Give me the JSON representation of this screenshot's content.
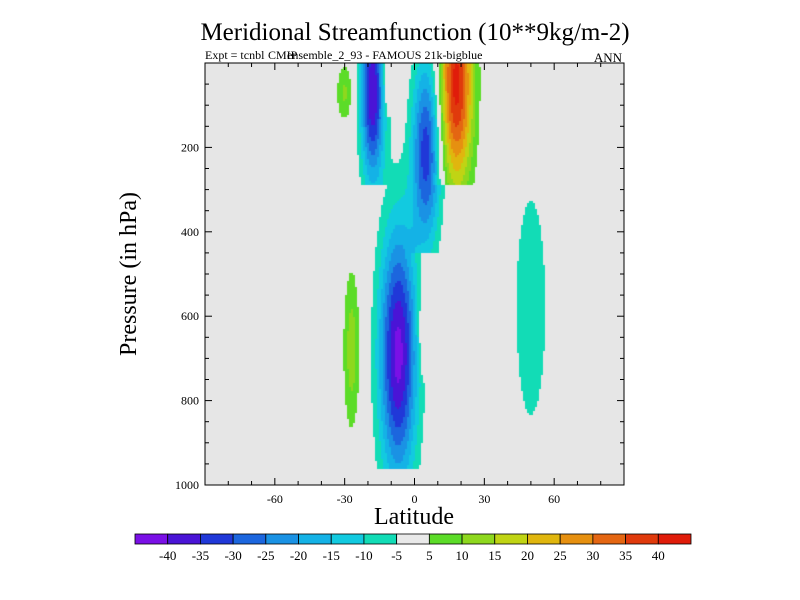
{
  "chart_data": {
    "type": "contour",
    "title": "Meridional Streamfunction (10**9kg/m-2)",
    "subtitle_lines": [
      "Expt = tcnbl",
      "CMIP",
      "ensemble_2_93 - FAMOUS 21k-bigblue"
    ],
    "season_label": "ANN",
    "xlabel": "Latitude",
    "ylabel": "Pressure (in hPa)",
    "xlim": [
      -90,
      90
    ],
    "ylim": [
      0,
      1000
    ],
    "y_inverted": true,
    "x_ticks": [
      -60,
      -30,
      0,
      30,
      60
    ],
    "y_ticks": [
      200,
      400,
      600,
      800,
      1000
    ],
    "x_minor_step": 10,
    "y_minor_step": 50,
    "background_color": "#e6e6e6",
    "contour_levels": [
      -40,
      -35,
      -30,
      -25,
      -20,
      -15,
      -10,
      -5,
      5,
      10,
      15,
      20,
      25,
      30,
      35,
      40
    ],
    "colorbar": [
      {
        "color": "#7a10e6",
        "label": "-40"
      },
      {
        "color": "#4a14d6",
        "label": "-35"
      },
      {
        "color": "#2038d8",
        "label": "-30"
      },
      {
        "color": "#1c66de",
        "label": "-25"
      },
      {
        "color": "#1a92e4",
        "label": "-20"
      },
      {
        "color": "#14b2e6",
        "label": "-15"
      },
      {
        "color": "#12cae0",
        "label": "-10"
      },
      {
        "color": "#12dcb6",
        "label": "-5"
      },
      {
        "color": "#e9e9e9",
        "label": "5"
      },
      {
        "color": "#5cdc28",
        "label": "10"
      },
      {
        "color": "#8ed81e",
        "label": "15"
      },
      {
        "color": "#c0d414",
        "label": "20"
      },
      {
        "color": "#e0b60e",
        "label": "25"
      },
      {
        "color": "#e69010",
        "label": "30"
      },
      {
        "color": "#e46612",
        "label": "35"
      },
      {
        "color": "#e03a0c",
        "label": "40"
      },
      {
        "color": "#e01c0a",
        "label": ""
      }
    ],
    "cells": [
      {
        "name": "nh-deep-cell-strong",
        "center": [
          -7,
          690
        ],
        "half_width": [
          8,
          300
        ],
        "bottom_p": 960,
        "sign": -1,
        "peak": 42
      },
      {
        "name": "nh-upper-cell",
        "center": [
          -18,
          70
        ],
        "half_width": [
          5,
          210
        ],
        "bottom_p": 290,
        "sign": -1,
        "peak": 40
      },
      {
        "name": "sh-tropical-cell",
        "center": [
          5,
          210
        ],
        "half_width": [
          6,
          220
        ],
        "bottom_p": 450,
        "sign": -1,
        "peak": 33
      },
      {
        "name": "subtropical-positive-jet",
        "center": [
          18,
          50
        ],
        "half_width": [
          7,
          240
        ],
        "bottom_p": 290,
        "sign": 1,
        "peak": 42
      },
      {
        "name": "nh-positive-lobe-upper",
        "center": [
          -30,
          70
        ],
        "half_width": [
          3.5,
          70
        ],
        "bottom_p": 130,
        "sign": 1,
        "peak": 11
      },
      {
        "name": "nh-positive-lobe-lower",
        "center": [
          -27,
          680
        ],
        "half_width": [
          3.5,
          190
        ],
        "bottom_p": 920,
        "sign": 1,
        "peak": 13
      },
      {
        "name": "tropical-positive-lobe-upper",
        "center": [
          -11,
          50
        ],
        "half_width": [
          3,
          90
        ],
        "bottom_p": 130,
        "sign": 1,
        "peak": 9
      },
      {
        "name": "tropical-positive-lobe-lower",
        "center": [
          4,
          640
        ],
        "half_width": [
          2.5,
          100
        ],
        "bottom_p": 760,
        "sign": 1,
        "peak": 9
      },
      {
        "name": "mid-latitude-weak-cell",
        "center": [
          50,
          580
        ],
        "half_width": [
          8,
          330
        ],
        "bottom_p": 850,
        "sign": -1,
        "peak": 9
      }
    ]
  }
}
